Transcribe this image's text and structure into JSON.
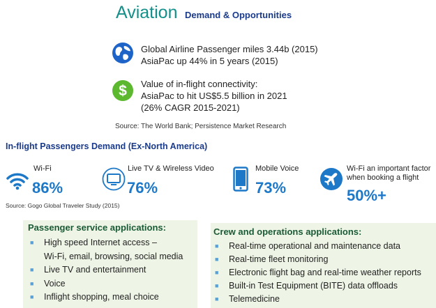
{
  "title": {
    "main": "Aviation",
    "sub": "Demand & Opportunities"
  },
  "stats": [
    {
      "icon": "globe-icon",
      "lines": [
        "Global Airline Passenger miles 3.44b (2015)",
        "AsiaPac up 44% in 5 years (2015)"
      ]
    },
    {
      "icon": "dollar-icon",
      "lines": [
        "Value of in-flight connectivity:",
        "AsiaPac to hit US$5.5 billion in 2021",
        "(26% CAGR 2015-2021)"
      ]
    }
  ],
  "source1": "Source: The World Bank; Persistence Market Research",
  "demand": {
    "heading": "In-flight Passengers Demand  (Ex-North America)",
    "metrics": [
      {
        "icon": "wifi-icon",
        "label": "Wi-Fi",
        "value": "86%"
      },
      {
        "icon": "tv-icon",
        "label": "Live TV & Wireless Video",
        "value": "76%"
      },
      {
        "icon": "mobile-phone-icon",
        "label": "Mobile Voice",
        "value": "73%"
      },
      {
        "icon": "airplane-icon",
        "label_lines": [
          "Wi-Fi an important factor",
          "when booking a flight"
        ],
        "value": "50%+"
      }
    ],
    "source": "Source: Gogo Global Traveler Study (2015)"
  },
  "passenger": {
    "title": "Passenger service applications:",
    "items": [
      [
        "High speed Internet access –",
        "Wi-Fi, email, browsing, social media"
      ],
      [
        "Live TV and entertainment"
      ],
      [
        "Voice"
      ],
      [
        "Inflight shopping, meal choice"
      ]
    ]
  },
  "crew": {
    "title": "Crew and operations applications:",
    "items": [
      "Real-time operational and maintenance data",
      "Real-time fleet monitoring",
      "Electronic flight bag and real-time weather reports",
      "Built-in Test Equipment (BITE) data offloads",
      "Telemedicine"
    ]
  },
  "colors": {
    "teal": "#13908a",
    "navy": "#1a3a8a",
    "blue": "#1e78c8",
    "green_box": "#eef5e6",
    "dark_green": "#1a5a35"
  }
}
